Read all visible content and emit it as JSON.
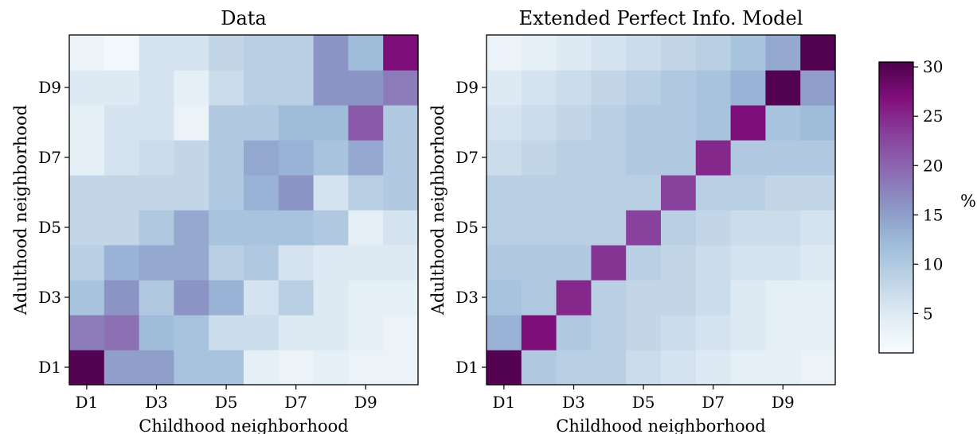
{
  "chart_data": [
    {
      "type": "heatmap",
      "title": "Data",
      "xlabel": "Childhood neighborhood",
      "ylabel": "Adulthood neighborhood",
      "x_categories": [
        "D1",
        "D2",
        "D3",
        "D4",
        "D5",
        "D6",
        "D7",
        "D8",
        "D9",
        "D10"
      ],
      "y_categories": [
        "D1",
        "D2",
        "D3",
        "D4",
        "D5",
        "D6",
        "D7",
        "D8",
        "D9",
        "D10"
      ],
      "x_tick_labels": [
        "D1",
        "D3",
        "D5",
        "D7",
        "D9"
      ],
      "y_tick_labels": [
        "D1",
        "D3",
        "D5",
        "D7",
        "D9"
      ],
      "values_by_adult_row_D1_to_D10": [
        [
          30,
          15,
          15,
          11,
          11,
          4,
          3,
          4,
          3,
          3
        ],
        [
          18,
          19,
          12,
          11,
          7,
          7,
          5,
          5,
          4,
          3
        ],
        [
          11,
          16,
          10,
          16,
          13,
          6,
          9,
          5,
          4,
          4
        ],
        [
          9,
          13,
          14,
          14,
          9,
          10,
          6,
          5,
          5,
          5
        ],
        [
          8,
          8,
          10,
          14,
          11,
          11,
          11,
          10,
          4,
          6
        ],
        [
          8,
          8,
          8,
          8,
          10,
          13,
          16,
          6,
          9,
          10
        ],
        [
          4,
          6,
          7,
          8,
          10,
          14,
          13,
          11,
          14,
          10
        ],
        [
          4,
          6,
          6,
          3,
          10,
          10,
          12,
          12,
          21,
          10
        ],
        [
          5,
          5,
          6,
          4,
          7,
          9,
          9,
          16,
          16,
          18
        ],
        [
          3,
          2,
          6,
          6,
          8,
          9,
          9,
          16,
          12,
          27
        ]
      ]
    },
    {
      "type": "heatmap",
      "title": "Extended Perfect Info. Model",
      "xlabel": "Childhood neighborhood",
      "ylabel": "Adulthood neighborhood",
      "x_categories": [
        "D1",
        "D2",
        "D3",
        "D4",
        "D5",
        "D6",
        "D7",
        "D8",
        "D9",
        "D10"
      ],
      "y_categories": [
        "D1",
        "D2",
        "D3",
        "D4",
        "D5",
        "D6",
        "D7",
        "D8",
        "D9",
        "D10"
      ],
      "x_tick_labels": [
        "D1",
        "D3",
        "D5",
        "D7",
        "D9"
      ],
      "y_tick_labels": [
        "D1",
        "D3",
        "D5",
        "D7",
        "D9"
      ],
      "values_by_adult_row_D1_to_D10": [
        [
          30,
          10,
          9,
          9,
          7,
          6,
          5,
          4,
          4,
          3
        ],
        [
          13,
          27,
          10,
          9,
          8,
          7,
          6,
          5,
          4,
          4
        ],
        [
          11,
          10,
          25,
          9,
          8,
          8,
          7,
          5,
          4,
          4
        ],
        [
          10,
          10,
          10,
          24,
          9,
          8,
          7,
          6,
          6,
          5
        ],
        [
          9,
          9,
          9,
          9,
          23,
          9,
          8,
          7,
          7,
          6
        ],
        [
          9,
          9,
          9,
          9,
          9,
          23,
          9,
          9,
          8,
          8
        ],
        [
          7,
          8,
          9,
          9,
          10,
          10,
          25,
          10,
          10,
          10
        ],
        [
          6,
          7,
          8,
          9,
          10,
          10,
          11,
          27,
          11,
          12
        ],
        [
          5,
          6,
          7,
          8,
          9,
          10,
          11,
          13,
          30,
          15
        ],
        [
          3,
          4,
          5,
          6,
          7,
          8,
          9,
          11,
          14,
          30
        ]
      ]
    }
  ],
  "colorbar": {
    "label": "%",
    "min": 1,
    "max": 30.5,
    "ticks": [
      5,
      10,
      15,
      20,
      25,
      30
    ],
    "colormap": "BuPu",
    "stops": [
      "#f7fcfd",
      "#e0ecf4",
      "#bfd3e6",
      "#9ebcda",
      "#8c96c6",
      "#8c6bb1",
      "#88419d",
      "#810f7c",
      "#4d004b"
    ]
  }
}
